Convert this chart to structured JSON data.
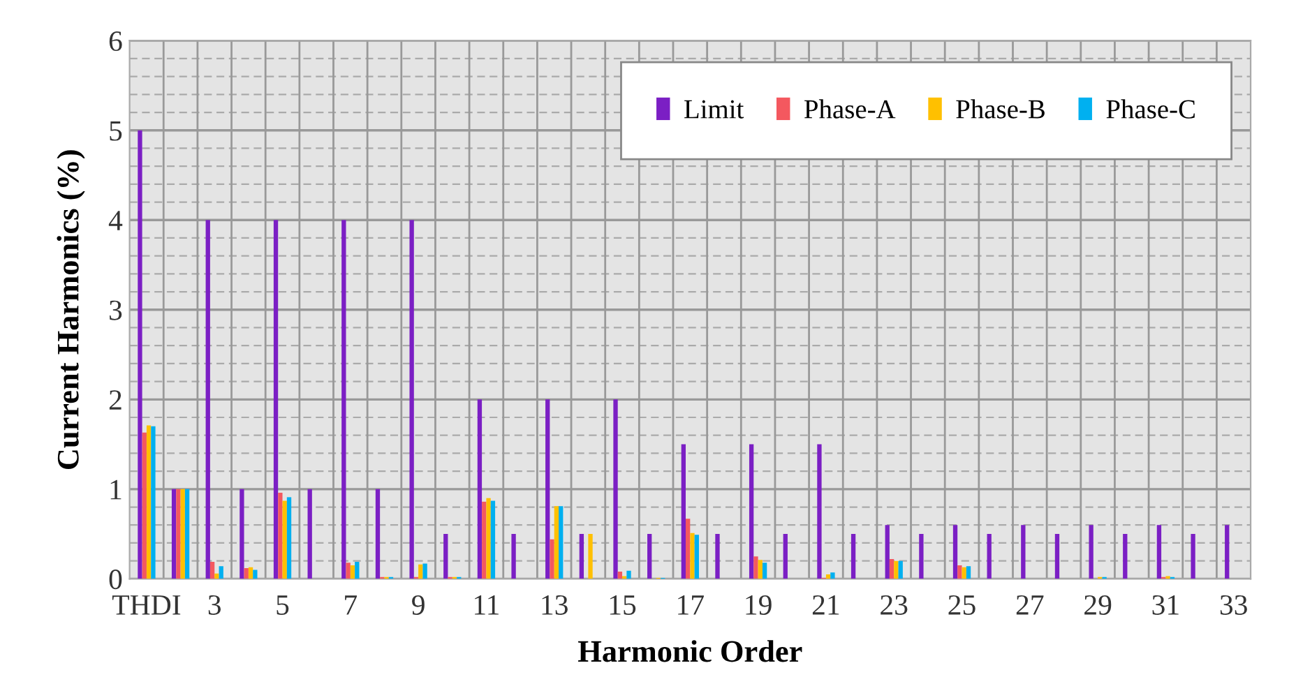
{
  "chart_data": {
    "type": "bar",
    "xlabel": "Harmonic Order",
    "ylabel": "Current Harmonics (%)",
    "categories": [
      "THDI",
      null,
      "3",
      null,
      "5",
      null,
      "7",
      null,
      "9",
      null,
      "11",
      null,
      "13",
      null,
      "15",
      null,
      "17",
      null,
      "19",
      null,
      "21",
      null,
      "23",
      null,
      "25",
      null,
      "27",
      null,
      "29",
      null,
      "31",
      null,
      "33"
    ],
    "series": [
      {
        "name": "Limit",
        "color": "#7b1fc4",
        "values": [
          5,
          1,
          4,
          1,
          4,
          1,
          4,
          1,
          4,
          0.5,
          2,
          0.5,
          2,
          0.5,
          2,
          0.5,
          1.5,
          0.5,
          1.5,
          0.5,
          1.5,
          0.5,
          0.6,
          0.5,
          0.6,
          0.5,
          0.6,
          0.5,
          0.6,
          0.5,
          0.6,
          0.5,
          0.6
        ]
      },
      {
        "name": "Phase-A",
        "color": "#f4585f",
        "values": [
          1.63,
          1.0,
          0.19,
          0.12,
          0.96,
          0,
          0.18,
          0.02,
          0.02,
          0.02,
          0.86,
          0,
          0.44,
          0,
          0.08,
          0,
          0.67,
          0,
          0.25,
          0,
          0.01,
          0,
          0.22,
          0,
          0.15,
          0,
          0,
          0,
          0,
          0,
          0.02,
          0,
          0
        ]
      },
      {
        "name": "Phase-B",
        "color": "#ffc000",
        "values": [
          1.71,
          1.0,
          0.06,
          0.13,
          0.87,
          0,
          0.15,
          0.02,
          0.16,
          0.02,
          0.9,
          0,
          0.81,
          0.5,
          0.03,
          0.01,
          0.51,
          0,
          0.21,
          0,
          0.05,
          0,
          0.2,
          0,
          0.13,
          0,
          0,
          0,
          0.02,
          0,
          0.03,
          0,
          0
        ]
      },
      {
        "name": "Phase-C",
        "color": "#00b0f0",
        "values": [
          1.7,
          1.0,
          0.14,
          0.1,
          0.91,
          0,
          0.19,
          0.02,
          0.17,
          0.02,
          0.87,
          0,
          0.81,
          0,
          0.09,
          0.01,
          0.49,
          0,
          0.18,
          0,
          0.07,
          0,
          0.2,
          0,
          0.14,
          0,
          0,
          0,
          0.02,
          0,
          0.02,
          0,
          0
        ]
      }
    ],
    "ylim": [
      0,
      6
    ],
    "yticks": [
      0,
      {
        "value": 0.2,
        "label": null
      },
      {
        "value": 0.4,
        "label": null
      },
      {
        "value": 0.6,
        "label": null
      },
      {
        "value": 0.8,
        "label": null
      },
      1,
      {
        "value": 1.2,
        "label": null
      },
      {
        "value": 1.4,
        "label": null
      },
      {
        "value": 1.6,
        "label": null
      },
      {
        "value": 1.8,
        "label": null
      },
      2,
      {
        "value": 2.2,
        "label": null
      },
      {
        "value": 2.4,
        "label": null
      },
      {
        "value": 2.6,
        "label": null
      },
      {
        "value": 2.8,
        "label": null
      },
      3,
      {
        "value": 3.2,
        "label": null
      },
      {
        "value": 3.4,
        "label": null
      },
      {
        "value": 3.6,
        "label": null
      },
      {
        "value": 3.8,
        "label": null
      },
      4,
      {
        "value": 4.2,
        "label": null
      },
      {
        "value": 4.4,
        "label": null
      },
      {
        "value": 4.6,
        "label": null
      },
      {
        "value": 4.8,
        "label": null
      },
      5,
      {
        "value": 5.2,
        "label": null
      },
      {
        "value": 5.4,
        "label": null
      },
      {
        "value": 5.6,
        "label": null
      },
      {
        "value": 5.8,
        "label": null
      },
      6
    ],
    "grid": true,
    "legend": "top right"
  }
}
